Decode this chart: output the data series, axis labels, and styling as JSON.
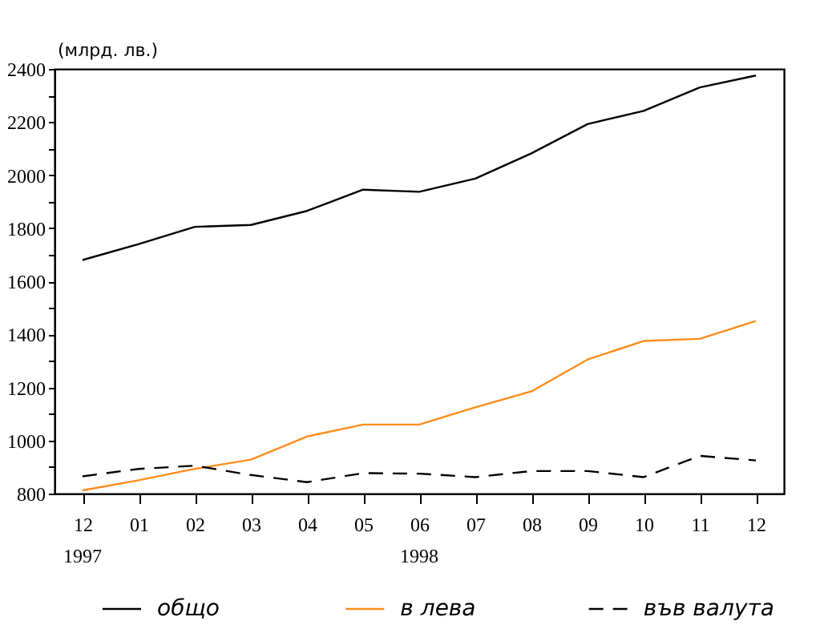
{
  "chart_data": {
    "type": "line",
    "ylabel": "(млрд. лв.)",
    "categories": [
      "12",
      "01",
      "02",
      "03",
      "04",
      "05",
      "06",
      "07",
      "08",
      "09",
      "10",
      "11",
      "12"
    ],
    "series": [
      {
        "name": "общо",
        "color": "#000000",
        "line_style": "solid",
        "values": [
          1680,
          1740,
          1805,
          1812,
          1865,
          1945,
          1937,
          1987,
          2082,
          2192,
          2242,
          2330,
          2375
        ]
      },
      {
        "name": "в лева",
        "color": "#ff8c1a",
        "line_style": "solid",
        "values": [
          812,
          850,
          893,
          928,
          1015,
          1060,
          1060,
          1125,
          1185,
          1305,
          1375,
          1383,
          1450
        ]
      },
      {
        "name": "във валута",
        "color": "#000000",
        "line_style": "dashed",
        "values": [
          865,
          893,
          905,
          870,
          843,
          877,
          875,
          862,
          885,
          885,
          862,
          942,
          925
        ]
      }
    ],
    "annotations": [
      "1997",
      "1998"
    ],
    "ylim": [
      800,
      2400
    ],
    "yticks": [
      800,
      {
        "value": 900,
        "label": null
      },
      1000,
      {
        "value": 1100,
        "label": null
      },
      1200,
      {
        "value": 1300,
        "label": null
      },
      1400,
      {
        "value": 1500,
        "label": null
      },
      1600,
      {
        "value": 1700,
        "label": null
      },
      1800,
      {
        "value": 1900,
        "label": null
      },
      2000,
      {
        "value": 2100,
        "label": null
      },
      2200,
      {
        "value": 2300,
        "label": null
      },
      2400
    ],
    "grid": false,
    "legend": "bottom",
    "marker": "none"
  }
}
